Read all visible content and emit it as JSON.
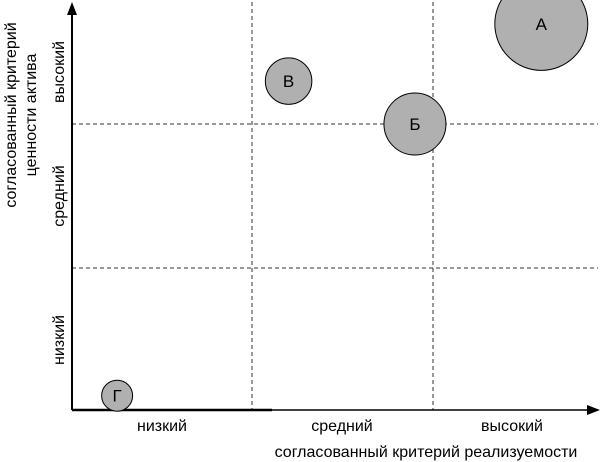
{
  "diagram": {
    "y_axis_title_lines": [
      "согласованный критерий",
      "ценности актива"
    ],
    "x_axis_title": "согласованный критерий реализуемости",
    "x_ticks": [
      "низкий",
      "средний",
      "высокий"
    ],
    "y_ticks": [
      "низкий",
      "средний",
      "высокий"
    ],
    "bubbles": [
      {
        "label": "А",
        "x": 2.6,
        "y": 2.7,
        "size": 3
      },
      {
        "label": "Б",
        "x": 1.9,
        "y": 2.0,
        "size": 2
      },
      {
        "label": "В",
        "x": 1.2,
        "y": 2.3,
        "size": 1.5
      },
      {
        "label": "Г",
        "x": 0.25,
        "y": 0.1,
        "size": 1
      }
    ],
    "colors": {
      "bubble_fill": "#b0b0b0",
      "line": "#000000",
      "grid": "#333333"
    }
  }
}
